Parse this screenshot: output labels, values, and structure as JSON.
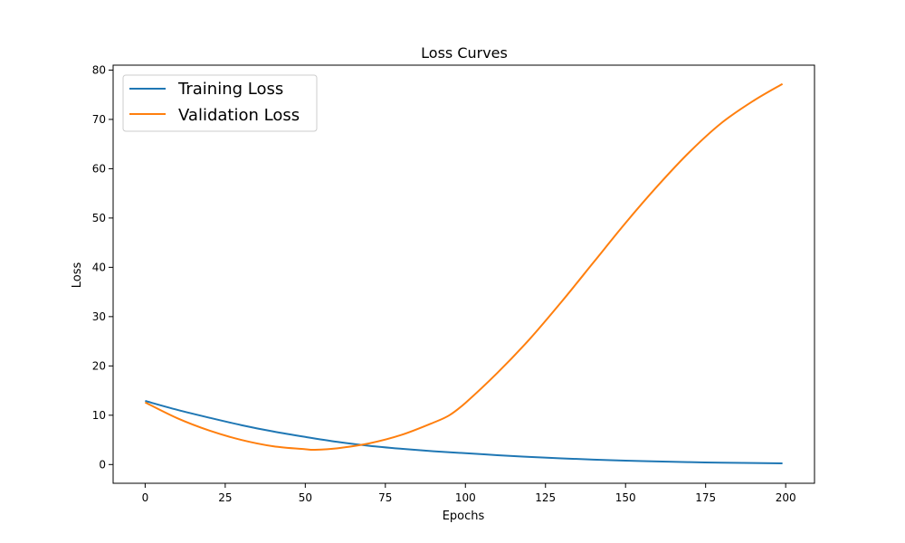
{
  "chart_data": {
    "type": "line",
    "title": "Loss Curves",
    "xlabel": "Epochs",
    "ylabel": "Loss",
    "xlim": [
      -10,
      209
    ],
    "ylim": [
      -3.8,
      81
    ],
    "xticks": [
      0,
      25,
      50,
      75,
      100,
      125,
      150,
      175,
      200
    ],
    "yticks": [
      0,
      10,
      20,
      30,
      40,
      50,
      60,
      70,
      80
    ],
    "grid": false,
    "legend_position": "top-left",
    "series": [
      {
        "name": "Training Loss",
        "color": "#1f77b4",
        "x": [
          0,
          10,
          20,
          30,
          40,
          50,
          60,
          70,
          80,
          90,
          100,
          110,
          120,
          130,
          140,
          150,
          160,
          170,
          180,
          190,
          199
        ],
        "y": [
          12.9,
          11.1,
          9.5,
          8.0,
          6.7,
          5.6,
          4.6,
          3.8,
          3.2,
          2.7,
          2.3,
          1.9,
          1.55,
          1.25,
          1.0,
          0.8,
          0.62,
          0.48,
          0.38,
          0.3,
          0.25
        ]
      },
      {
        "name": "Validation Loss",
        "color": "#ff7f0e",
        "x": [
          0,
          10,
          20,
          30,
          40,
          50,
          53,
          60,
          70,
          80,
          90,
          95,
          100,
          110,
          120,
          130,
          140,
          150,
          160,
          170,
          180,
          190,
          199
        ],
        "y": [
          12.6,
          9.4,
          6.9,
          5.0,
          3.7,
          3.1,
          3.0,
          3.3,
          4.3,
          6.0,
          8.5,
          10.0,
          12.5,
          18.6,
          25.4,
          33.0,
          41.0,
          49.0,
          56.5,
          63.4,
          69.3,
          73.8,
          77.2
        ]
      }
    ]
  }
}
